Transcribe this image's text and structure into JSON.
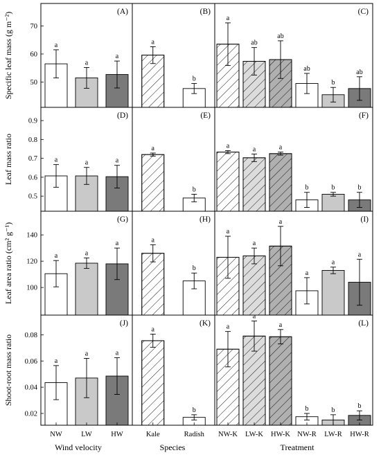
{
  "figure": {
    "bottom_labels": [
      "Wind velocity",
      "Species",
      "Treatment"
    ]
  },
  "chart_data": [
    {
      "panel": "(A)",
      "type": "bar",
      "ylabel": "Specific leaf mass (g m⁻²)",
      "ylim": [
        41,
        78
      ],
      "yticks": [
        50,
        60,
        70
      ],
      "categories": [
        "NW",
        "LW",
        "HW"
      ],
      "values": [
        56.5,
        51.5,
        52.7
      ],
      "errors": [
        5.0,
        3.7,
        4.8
      ],
      "letters": [
        "a",
        "a",
        "a"
      ],
      "fills": [
        "open",
        "light",
        "dark"
      ]
    },
    {
      "panel": "(B)",
      "type": "bar",
      "ylim": [
        41,
        78
      ],
      "categories": [
        "Kale",
        "Radish"
      ],
      "values": [
        59.6,
        47.7
      ],
      "errors": [
        3.0,
        1.8
      ],
      "letters": [
        "a",
        "b"
      ],
      "fills": [
        "hatch",
        "open"
      ]
    },
    {
      "panel": "(C)",
      "type": "bar",
      "ylim": [
        41,
        78
      ],
      "categories": [
        "NW-K",
        "LW-K",
        "HW-K",
        "NW-R",
        "LW-R",
        "HW-R"
      ],
      "values": [
        63.5,
        57.4,
        58.0,
        49.5,
        45.5,
        47.7
      ],
      "errors": [
        7.6,
        4.9,
        6.7,
        3.6,
        2.6,
        4.2
      ],
      "letters": [
        "a",
        "ab",
        "ab",
        "ab",
        "b",
        "ab"
      ],
      "fills": [
        "hatch",
        "hatch-light",
        "hatch-dark",
        "open",
        "light",
        "dark"
      ]
    },
    {
      "panel": "(D)",
      "type": "bar",
      "ylabel": "Leaf mass ratio",
      "ylim": [
        0.42,
        0.97
      ],
      "yticks": [
        0.5,
        0.6,
        0.7,
        0.8,
        0.9
      ],
      "categories": [
        "NW",
        "LW",
        "HW"
      ],
      "values": [
        0.607,
        0.607,
        0.603
      ],
      "errors": [
        0.06,
        0.045,
        0.06
      ],
      "letters": [
        "a",
        "a",
        "a"
      ],
      "fills": [
        "open",
        "light",
        "dark"
      ]
    },
    {
      "panel": "(E)",
      "type": "bar",
      "ylim": [
        0.42,
        0.97
      ],
      "categories": [
        "Kale",
        "Radish"
      ],
      "values": [
        0.72,
        0.49
      ],
      "errors": [
        0.008,
        0.02
      ],
      "letters": [
        "a",
        "b"
      ],
      "fills": [
        "hatch",
        "open"
      ]
    },
    {
      "panel": "(F)",
      "type": "bar",
      "ylim": [
        0.42,
        0.97
      ],
      "categories": [
        "NW-K",
        "LW-K",
        "HW-K",
        "NW-R",
        "LW-R",
        "HW-R"
      ],
      "values": [
        0.733,
        0.703,
        0.725,
        0.48,
        0.51,
        0.48
      ],
      "errors": [
        0.008,
        0.02,
        0.008,
        0.04,
        0.01,
        0.04
      ],
      "letters": [
        "a",
        "a",
        "a",
        "b",
        "b",
        "b"
      ],
      "fills": [
        "hatch",
        "hatch-light",
        "hatch-dark",
        "open",
        "light",
        "dark"
      ]
    },
    {
      "panel": "(G)",
      "type": "bar",
      "ylabel": "Leaf area ratio (cm² g⁻¹)",
      "ylim": [
        79,
        158
      ],
      "yticks": [
        100,
        120,
        140
      ],
      "categories": [
        "NW",
        "LW",
        "HW"
      ],
      "values": [
        110.5,
        118.5,
        118.0
      ],
      "errors": [
        10.0,
        4.0,
        12.0
      ],
      "letters": [
        "a",
        "a",
        "a"
      ],
      "fills": [
        "open",
        "light",
        "dark"
      ]
    },
    {
      "panel": "(H)",
      "type": "bar",
      "ylim": [
        79,
        158
      ],
      "categories": [
        "Kale",
        "Radish"
      ],
      "values": [
        126.0,
        105.0
      ],
      "errors": [
        6.5,
        6.0
      ],
      "letters": [
        "a",
        "b"
      ],
      "fills": [
        "hatch",
        "open"
      ]
    },
    {
      "panel": "(I)",
      "type": "bar",
      "ylim": [
        79,
        158
      ],
      "categories": [
        "NW-K",
        "LW-K",
        "HW-K",
        "NW-R",
        "LW-R",
        "HW-R"
      ],
      "values": [
        123.0,
        124.0,
        131.5,
        97.5,
        113.0,
        104.0
      ],
      "errors": [
        16.0,
        6.0,
        15.0,
        10.0,
        2.5,
        17.5
      ],
      "letters": [
        "a",
        "a",
        "a",
        "a",
        "a",
        "a"
      ],
      "fills": [
        "hatch",
        "hatch-light",
        "hatch-dark",
        "open",
        "light",
        "dark"
      ]
    },
    {
      "panel": "(J)",
      "type": "bar",
      "ylabel": "Shoot-root mass ratio",
      "ylim": [
        0.011,
        0.095
      ],
      "yticks": [
        0.02,
        0.04,
        0.06,
        0.08
      ],
      "categories": [
        "NW",
        "LW",
        "HW"
      ],
      "values": [
        0.0435,
        0.047,
        0.0485
      ],
      "errors": [
        0.013,
        0.015,
        0.014
      ],
      "letters": [
        "a",
        "a",
        "a"
      ],
      "fills": [
        "open",
        "light",
        "dark"
      ]
    },
    {
      "panel": "(K)",
      "type": "bar",
      "ylim": [
        0.011,
        0.095
      ],
      "categories": [
        "Kale",
        "Radish"
      ],
      "values": [
        0.0755,
        0.017
      ],
      "errors": [
        0.005,
        0.002
      ],
      "letters": [
        "a",
        "b"
      ],
      "fills": [
        "hatch",
        "open"
      ]
    },
    {
      "panel": "(L)",
      "type": "bar",
      "ylim": [
        0.011,
        0.095
      ],
      "categories": [
        "NW-K",
        "LW-K",
        "HW-K",
        "NW-R",
        "LW-R",
        "HW-R"
      ],
      "values": [
        0.069,
        0.079,
        0.0785,
        0.0175,
        0.015,
        0.0185
      ],
      "errors": [
        0.0135,
        0.0115,
        0.0055,
        0.0025,
        0.004,
        0.0035
      ],
      "letters": [
        "a",
        "a",
        "a",
        "b",
        "b",
        "b"
      ],
      "fills": [
        "hatch",
        "hatch-light",
        "hatch-dark",
        "open",
        "light",
        "dark"
      ]
    }
  ]
}
